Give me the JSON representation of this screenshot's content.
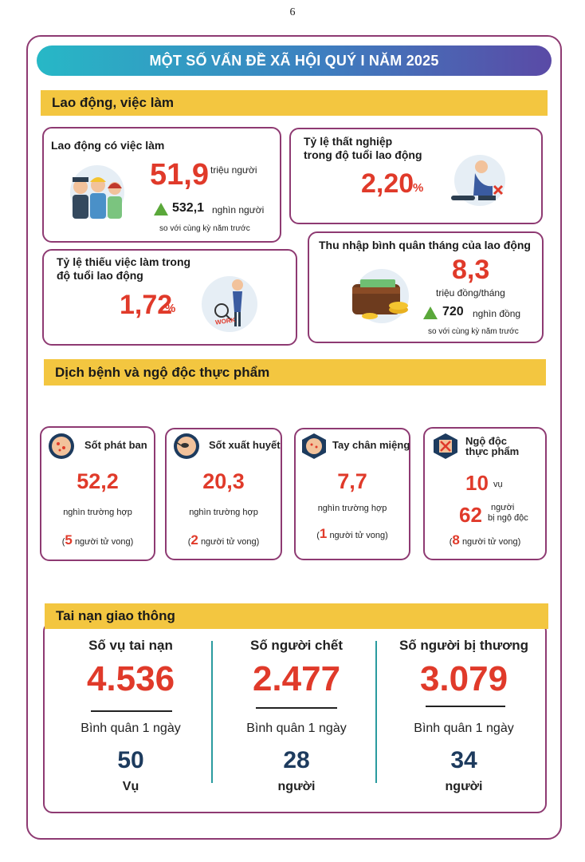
{
  "page_number": "6",
  "title": "MỘT SỐ VẤN ĐỀ XÃ HỘI QUÝ I NĂM 2025",
  "labor": {
    "section_title": "Lao động, việc làm",
    "employed": {
      "label": "Lao động có việc làm",
      "value": "51,9",
      "unit": "triệu người",
      "change_value": "532,1",
      "change_unit": "nghìn người",
      "change_note": "so với cùng kỳ năm trước"
    },
    "unemployment": {
      "label_line1": "Tỷ lệ thất nghiệp",
      "label_line2": "trong độ tuổi lao động",
      "value": "2,20",
      "unit": "%"
    },
    "underemployment": {
      "label_line1": "Tỷ lệ thiếu việc làm trong",
      "label_line2": "độ tuổi lao động",
      "value": "1,72",
      "unit": "%",
      "icon_text": "WORK"
    },
    "income": {
      "label": "Thu nhập bình quân tháng của lao động",
      "value": "8,3",
      "unit": "triệu đồng/tháng",
      "change_value": "720",
      "change_unit": "nghìn đồng",
      "change_note": "so với cùng kỳ năm trước"
    }
  },
  "disease": {
    "section_title": "Dịch bệnh và ngộ độc thực phẩm",
    "cards": [
      {
        "label": "Sốt phát ban",
        "value": "52,2",
        "unit": "nghìn trường hợp",
        "death_count": "5",
        "death_text": "người tử vong"
      },
      {
        "label": "Sốt xuất huyết",
        "value": "20,3",
        "unit": "nghìn trường hợp",
        "death_count": "2",
        "death_text": "người tử vong"
      },
      {
        "label": "Tay chân miệng",
        "value": "7,7",
        "unit": "nghìn trường hợp",
        "death_count": "1",
        "death_text": "người tử vong"
      }
    ],
    "food": {
      "label_line1": "Ngộ độc",
      "label_line2": "thực phẩm",
      "cases_value": "10",
      "cases_unit": "vụ",
      "people_value": "62",
      "people_unit_line1": "người",
      "people_unit_line2": "bị ngộ độc",
      "death_count": "8",
      "death_text": "người tử vong"
    }
  },
  "traffic": {
    "section_title": "Tai nạn giao thông",
    "daily_label": "Bình quân 1 ngày",
    "columns": [
      {
        "label": "Số vụ tai nạn",
        "value": "4.536",
        "daily_value": "50",
        "daily_unit": "Vụ"
      },
      {
        "label": "Số người chết",
        "value": "2.477",
        "daily_value": "28",
        "daily_unit": "người"
      },
      {
        "label": "Số người bị thương",
        "value": "3.079",
        "daily_value": "34",
        "daily_unit": "người"
      }
    ]
  },
  "colors": {
    "frame": "#8e3a72",
    "band": "#f3c640",
    "value_red": "#e03a2a",
    "navy": "#1d3b5e",
    "teal": "#2a9b9f",
    "green": "#5aa83a"
  }
}
